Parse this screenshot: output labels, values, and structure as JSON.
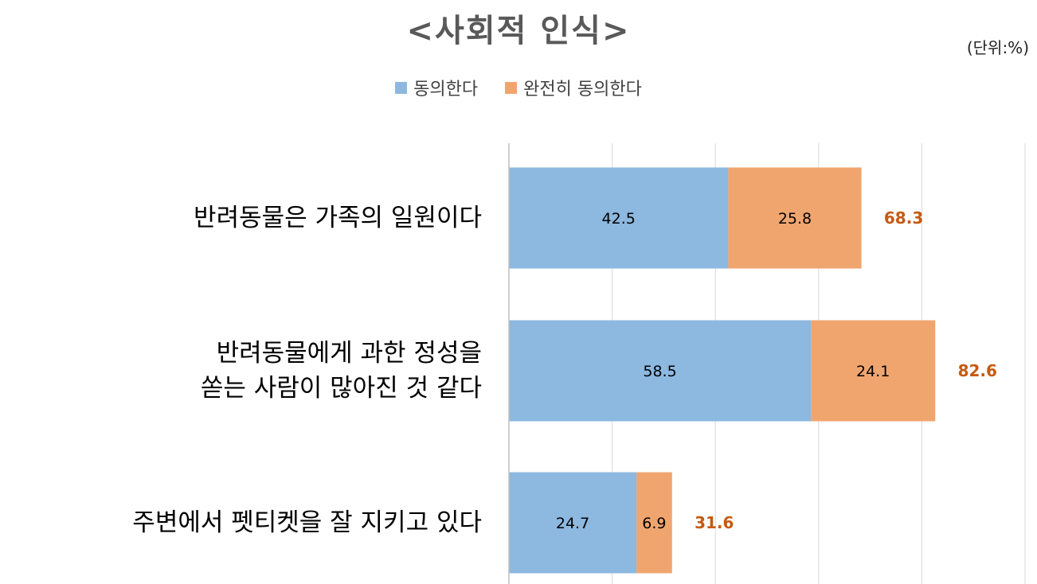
{
  "chart_data": {
    "type": "bar",
    "stacked": true,
    "orientation": "horizontal",
    "title": "<사회적 인식>",
    "unit_note": "(단위:%)",
    "categories": [
      [
        "반려동물은 가족의 일원이다"
      ],
      [
        "반려동물에게 과한 정성을",
        "쏟는 사람이 많아진 것 같다"
      ],
      [
        "주변에서 펫티켓을 잘 지키고 있다"
      ]
    ],
    "series": [
      {
        "name": "동의한다",
        "color": "#8db8e0",
        "values": [
          42.5,
          58.5,
          24.7
        ]
      },
      {
        "name": "완전히 동의한다",
        "color": "#f0a56f",
        "values": [
          25.8,
          24.1,
          6.9
        ]
      }
    ],
    "totals": [
      68.3,
      82.6,
      31.6
    ],
    "total_label_color": "#c55a11",
    "xlim": [
      0,
      100
    ],
    "grid": true,
    "legend_position": "top"
  }
}
